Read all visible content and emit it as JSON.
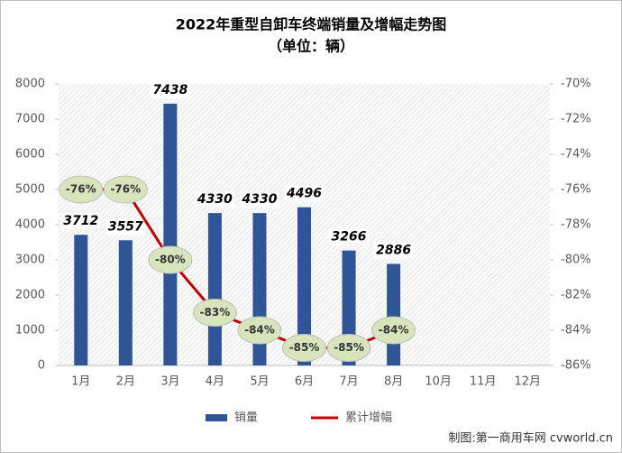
{
  "chart_data": {
    "type": "bar_line",
    "title": "2022年重型自卸车终端销量及增幅走势图",
    "subtitle": "（单位：辆）",
    "categories": [
      "1月",
      "2月",
      "3月",
      "4月",
      "5月",
      "6月",
      "7月",
      "8月",
      "10月",
      "11月",
      "12月"
    ],
    "series": [
      {
        "name": "销量",
        "color": "#2f5597",
        "type": "bar",
        "axis": "y",
        "values": [
          3712,
          3557,
          7438,
          4330,
          4330,
          4496,
          3266,
          2886,
          null,
          null,
          null
        ]
      },
      {
        "name": "累计增幅",
        "color": "#c00000",
        "type": "line",
        "axis": "y2",
        "values": [
          -76,
          -76,
          -80,
          -83,
          -84,
          -85,
          -85,
          -84,
          null,
          null,
          null
        ],
        "value_labels": [
          "-76%",
          "-76%",
          "-80%",
          "-83%",
          "-84%",
          "-85%",
          "-85%",
          "-84%",
          null,
          null,
          null
        ]
      }
    ],
    "ylim": [
      0,
      8000
    ],
    "yticks": [
      0,
      1000,
      2000,
      3000,
      4000,
      5000,
      6000,
      7000,
      8000
    ],
    "y2lim": [
      -86,
      -70
    ],
    "y2ticks": [
      {
        "value": -86,
        "label": "-86%"
      },
      {
        "value": -84,
        "label": "-84%"
      },
      {
        "value": -82,
        "label": "-82%"
      },
      {
        "value": -80,
        "label": "-80%"
      },
      {
        "value": -78,
        "label": "-78%"
      },
      {
        "value": -76,
        "label": "-76%"
      },
      {
        "value": -74,
        "label": "-74%"
      },
      {
        "value": -72,
        "label": "-72%"
      },
      {
        "value": -70,
        "label": "-70%"
      }
    ],
    "legend": "bottom",
    "source": "制图:第一商用车网 cvworld.cn"
  }
}
